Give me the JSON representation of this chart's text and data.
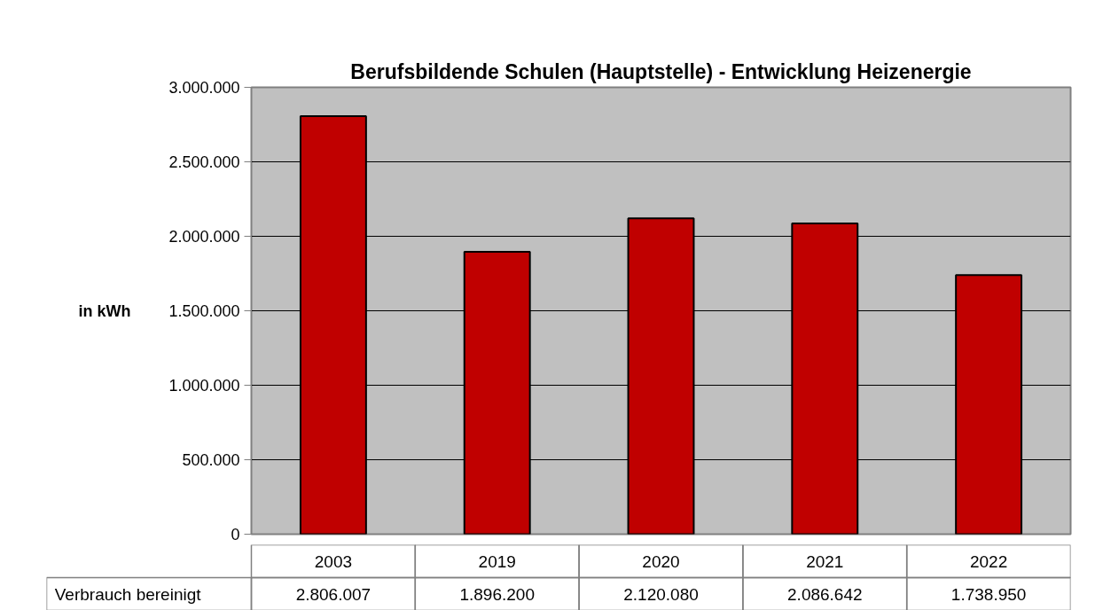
{
  "chart_data": {
    "type": "bar",
    "title": "Berufsbildende Schulen (Hauptstelle) - Entwicklung Heizenergie",
    "ylabel": "in kWh",
    "categories": [
      "2003",
      "2019",
      "2020",
      "2021",
      "2022"
    ],
    "series": [
      {
        "name": "Verbrauch bereinigt",
        "color": "#c00000",
        "values": [
          2806007,
          1896200,
          2120080,
          2086642,
          1738950
        ],
        "value_labels": [
          "2.806.007",
          "1.896.200",
          "2.120.080",
          "2.086.642",
          "1.738.950"
        ]
      }
    ],
    "ylim": [
      0,
      3000000
    ],
    "yticks": [
      0,
      {
        "value": 500000,
        "label": "500.000"
      },
      {
        "value": 1000000,
        "label": "1.000.000"
      },
      {
        "value": 1500000,
        "label": "1.500.000"
      },
      {
        "value": 2000000,
        "label": "2.000.000"
      },
      {
        "value": 2500000,
        "label": "2.500.000"
      },
      {
        "value": 3000000,
        "label": "3.000.000"
      }
    ],
    "grid": "y"
  }
}
